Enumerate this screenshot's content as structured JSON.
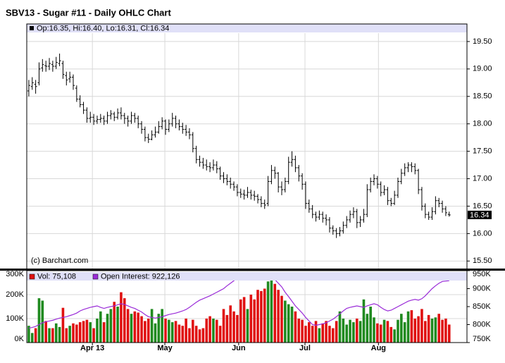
{
  "chart_data": [
    {
      "type": "ohlc",
      "title": "SBV13 - Sugar #11 - Daily OHLC Chart",
      "info": "Op:16.35, Hi:16.40, Lo:16.31, Cl:16.34",
      "credit": "(c) Barchart.com",
      "color": "#000000",
      "grid": true,
      "xlim": [
        -0.6,
        128.2
      ],
      "ylim": [
        15.35,
        19.82
      ],
      "yticks": [
        {
          "value": 15.5,
          "label": "15.50"
        },
        {
          "value": 16,
          "label": "16.00"
        },
        {
          "value": 16.5,
          "label": "16.50"
        },
        {
          "value": 17,
          "label": "17.00"
        },
        {
          "value": 17.5,
          "label": "17.50"
        },
        {
          "value": 18,
          "label": "18.00"
        },
        {
          "value": 18.5,
          "label": "18.50"
        },
        {
          "value": 19,
          "label": "19.00"
        },
        {
          "value": 19.5,
          "label": "19.50"
        }
      ],
      "open": [
        18.6,
        18.68,
        18.72,
        18.75,
        19.02,
        19.06,
        19.05,
        19.08,
        19.05,
        19.1,
        19.1,
        18.88,
        18.82,
        18.85,
        18.65,
        18.45,
        18.35,
        18.25,
        18.1,
        18.12,
        18.05,
        18.08,
        18.1,
        18.05,
        18.15,
        18.18,
        18.12,
        18.2,
        18.15,
        18.1,
        18.05,
        18.15,
        18.1,
        18.0,
        17.9,
        17.75,
        17.72,
        17.8,
        17.85,
        17.95,
        18.05,
        17.9,
        18.0,
        18.1,
        18.0,
        17.95,
        17.9,
        17.85,
        17.8,
        17.55,
        17.35,
        17.3,
        17.25,
        17.22,
        17.2,
        17.25,
        17.18,
        17.05,
        17.0,
        16.95,
        16.9,
        16.85,
        16.75,
        16.72,
        16.7,
        16.75,
        16.7,
        16.68,
        16.62,
        16.55,
        16.55,
        16.95,
        17.15,
        17.1,
        16.85,
        16.8,
        16.95,
        17.3,
        17.35,
        17.2,
        17.05,
        16.9,
        16.55,
        16.45,
        16.35,
        16.3,
        16.35,
        16.28,
        16.25,
        16.1,
        16.05,
        16.0,
        16.05,
        16.15,
        16.25,
        16.35,
        16.4,
        16.2,
        16.25,
        16.35,
        16.8,
        16.95,
        17.0,
        16.9,
        16.75,
        16.8,
        16.6,
        16.55,
        16.7,
        16.95,
        17.1,
        17.2,
        17.25,
        17.22,
        17.15,
        16.8,
        16.5,
        16.35,
        16.3,
        16.4,
        16.6,
        16.55,
        16.45,
        16.35
      ],
      "high": [
        18.8,
        18.85,
        18.8,
        19.12,
        19.18,
        19.15,
        19.2,
        19.15,
        19.22,
        19.28,
        19.15,
        18.95,
        18.95,
        18.9,
        18.7,
        18.52,
        18.4,
        18.3,
        18.22,
        18.18,
        18.15,
        18.18,
        18.15,
        18.22,
        18.25,
        18.22,
        18.28,
        18.3,
        18.2,
        18.15,
        18.22,
        18.2,
        18.15,
        18.05,
        17.95,
        17.82,
        17.88,
        17.95,
        18.05,
        18.12,
        18.08,
        18.08,
        18.2,
        18.15,
        18.08,
        18.02,
        17.98,
        17.92,
        17.85,
        17.6,
        17.42,
        17.38,
        17.35,
        17.3,
        17.35,
        17.32,
        17.22,
        17.12,
        17.08,
        17.02,
        16.95,
        16.9,
        16.82,
        16.8,
        16.85,
        16.8,
        16.78,
        16.72,
        16.68,
        16.62,
        17.05,
        17.25,
        17.22,
        17.12,
        16.95,
        17.02,
        17.4,
        17.5,
        17.42,
        17.25,
        17.1,
        16.95,
        16.62,
        16.52,
        16.4,
        16.42,
        16.4,
        16.35,
        16.3,
        16.15,
        16.1,
        16.12,
        16.22,
        16.32,
        16.42,
        16.48,
        16.45,
        16.32,
        16.45,
        16.9,
        17.02,
        17.08,
        17.05,
        16.95,
        16.88,
        16.85,
        16.65,
        16.78,
        17.02,
        17.18,
        17.28,
        17.3,
        17.3,
        17.28,
        17.18,
        16.85,
        16.55,
        16.4,
        16.48,
        16.68,
        16.65,
        16.6,
        16.5,
        16.4
      ],
      "low": [
        18.5,
        18.62,
        18.55,
        18.7,
        18.95,
        18.95,
        18.98,
        18.95,
        19.0,
        19.05,
        18.82,
        18.7,
        18.75,
        18.62,
        18.4,
        18.3,
        18.18,
        18.02,
        18.02,
        17.98,
        18.0,
        18.02,
        17.98,
        18.0,
        18.08,
        18.05,
        18.08,
        18.08,
        18.0,
        17.95,
        18.0,
        18.02,
        17.92,
        17.82,
        17.68,
        17.65,
        17.7,
        17.75,
        17.82,
        17.9,
        17.8,
        17.85,
        17.95,
        17.92,
        17.88,
        17.82,
        17.78,
        17.72,
        17.48,
        17.28,
        17.22,
        17.18,
        17.15,
        17.12,
        17.15,
        17.1,
        16.98,
        16.92,
        16.88,
        16.82,
        16.78,
        16.68,
        16.65,
        16.62,
        16.65,
        16.62,
        16.6,
        16.55,
        16.48,
        16.45,
        16.5,
        16.9,
        17.0,
        16.75,
        16.7,
        16.75,
        16.9,
        17.22,
        17.12,
        16.95,
        16.8,
        16.45,
        16.38,
        16.28,
        16.22,
        16.25,
        16.2,
        16.15,
        16.02,
        15.98,
        15.92,
        15.95,
        16.0,
        16.1,
        16.2,
        16.28,
        16.1,
        16.12,
        16.2,
        16.3,
        16.75,
        16.88,
        16.82,
        16.68,
        16.7,
        16.52,
        16.5,
        16.52,
        16.65,
        16.9,
        17.05,
        17.12,
        17.12,
        17.08,
        16.72,
        16.42,
        16.28,
        16.25,
        16.25,
        16.35,
        16.48,
        16.38,
        16.32,
        16.31
      ],
      "close": [
        18.7,
        18.75,
        18.68,
        19.0,
        19.08,
        19.05,
        19.1,
        19.05,
        19.12,
        19.15,
        18.9,
        18.8,
        18.85,
        18.7,
        18.45,
        18.35,
        18.25,
        18.1,
        18.12,
        18.05,
        18.08,
        18.1,
        18.05,
        18.15,
        18.18,
        18.12,
        18.2,
        18.15,
        18.1,
        18.05,
        18.15,
        18.1,
        18.0,
        17.9,
        17.75,
        17.72,
        17.8,
        17.85,
        17.95,
        18.05,
        17.9,
        18.0,
        18.1,
        18.0,
        17.95,
        17.9,
        17.85,
        17.8,
        17.55,
        17.35,
        17.3,
        17.25,
        17.22,
        17.2,
        17.25,
        17.18,
        17.05,
        17.0,
        16.95,
        16.9,
        16.85,
        16.75,
        16.72,
        16.7,
        16.75,
        16.7,
        16.68,
        16.62,
        16.55,
        16.52,
        16.95,
        17.15,
        17.1,
        16.85,
        16.8,
        16.95,
        17.3,
        17.35,
        17.2,
        17.05,
        16.9,
        16.55,
        16.45,
        16.35,
        16.3,
        16.35,
        16.28,
        16.25,
        16.1,
        16.05,
        16.0,
        16.05,
        16.15,
        16.25,
        16.35,
        16.4,
        16.2,
        16.25,
        16.35,
        16.8,
        16.95,
        17.0,
        16.9,
        16.75,
        16.8,
        16.6,
        16.55,
        16.7,
        16.95,
        17.1,
        17.2,
        17.25,
        17.22,
        17.15,
        16.8,
        16.5,
        16.35,
        16.3,
        16.4,
        16.6,
        16.55,
        16.45,
        16.38,
        16.34
      ]
    },
    {
      "type": "bar",
      "grid": true,
      "xlim": [
        -0.6,
        128.2
      ],
      "xticks": [
        {
          "value": 18.6,
          "label": "Apr 13"
        },
        {
          "value": 39.8,
          "label": "May"
        },
        {
          "value": 61.4,
          "label": "Jun"
        },
        {
          "value": 80.8,
          "label": "Jul"
        },
        {
          "value": 102.3,
          "label": "Aug"
        }
      ],
      "ylim": [
        0,
        300000
      ],
      "yticks": [
        {
          "value": 0,
          "label": "0K"
        },
        {
          "value": 100000,
          "label": "100K"
        },
        {
          "value": 200000,
          "label": "200K"
        },
        {
          "value": 300000,
          "label": "300K"
        }
      ],
      "y2lim": [
        750000,
        950000
      ],
      "y2ticks": [
        {
          "value": 750000,
          "label": "750K"
        },
        {
          "value": 800000,
          "label": "800K"
        },
        {
          "value": 850000,
          "label": "850K"
        },
        {
          "value": 900000,
          "label": "900K"
        },
        {
          "value": 950000,
          "label": "950K"
        }
      ],
      "series": [
        {
          "name": "Vol: 75,108",
          "color": "#e01010",
          "up_color": "#1f8a1f",
          "down_color": "#e01010",
          "flat_color": "#1010a0",
          "values": [
            70000,
            40000,
            60000,
            185000,
            175000,
            90000,
            60000,
            60000,
            80000,
            65000,
            145000,
            60000,
            70000,
            80000,
            75000,
            85000,
            90000,
            95000,
            85000,
            60000,
            100000,
            130000,
            85000,
            120000,
            140000,
            170000,
            150000,
            210000,
            185000,
            140000,
            120000,
            130000,
            125000,
            110000,
            90000,
            100000,
            140000,
            80000,
            120000,
            140000,
            100000,
            95000,
            85000,
            90000,
            75000,
            70000,
            100000,
            60000,
            95000,
            70000,
            55000,
            60000,
            100000,
            110000,
            100000,
            95000,
            70000,
            140000,
            115000,
            155000,
            130000,
            115000,
            180000,
            190000,
            140000,
            200000,
            180000,
            220000,
            215000,
            225000,
            255000,
            270000,
            245000,
            220000,
            195000,
            175000,
            160000,
            150000,
            130000,
            100000,
            95000,
            70000,
            85000,
            70000,
            90000,
            60000,
            80000,
            90000,
            70000,
            60000,
            90000,
            130000,
            100000,
            75000,
            95000,
            85000,
            100000,
            90000,
            180000,
            120000,
            150000,
            105000,
            80000,
            75000,
            95000,
            90000,
            65000,
            55000,
            95000,
            120000,
            85000,
            130000,
            135000,
            100000,
            110000,
            140000,
            90000,
            115000,
            100000,
            105000,
            120000,
            95000,
            100000,
            75108
          ]
        },
        {
          "name": "Open Interest: 922,126",
          "color": "#9a2bd8",
          "axis": "y2",
          "values": [
            790000,
            792000,
            795000,
            800000,
            805000,
            808000,
            810000,
            812000,
            815000,
            818000,
            820000,
            822000,
            825000,
            828000,
            832000,
            838000,
            842000,
            845000,
            848000,
            850000,
            852000,
            848000,
            845000,
            848000,
            850000,
            852000,
            855000,
            858000,
            856000,
            852000,
            848000,
            845000,
            840000,
            835000,
            828000,
            822000,
            820000,
            818000,
            820000,
            822000,
            825000,
            828000,
            830000,
            832000,
            835000,
            838000,
            842000,
            848000,
            855000,
            862000,
            868000,
            872000,
            876000,
            880000,
            885000,
            890000,
            895000,
            900000,
            908000,
            915000,
            922000,
            930000,
            938000,
            942000,
            945000,
            940000,
            935000,
            932000,
            930000,
            933000,
            935000,
            932000,
            925000,
            915000,
            905000,
            890000,
            878000,
            865000,
            852000,
            842000,
            832000,
            820000,
            810000,
            800000,
            798000,
            800000,
            802000,
            805000,
            810000,
            815000,
            822000,
            830000,
            838000,
            845000,
            848000,
            850000,
            852000,
            850000,
            848000,
            852000,
            855000,
            858000,
            855000,
            848000,
            842000,
            838000,
            840000,
            845000,
            850000,
            855000,
            860000,
            865000,
            868000,
            870000,
            868000,
            872000,
            880000,
            890000,
            900000,
            908000,
            915000,
            920000,
            921000,
            922126
          ]
        }
      ]
    }
  ]
}
